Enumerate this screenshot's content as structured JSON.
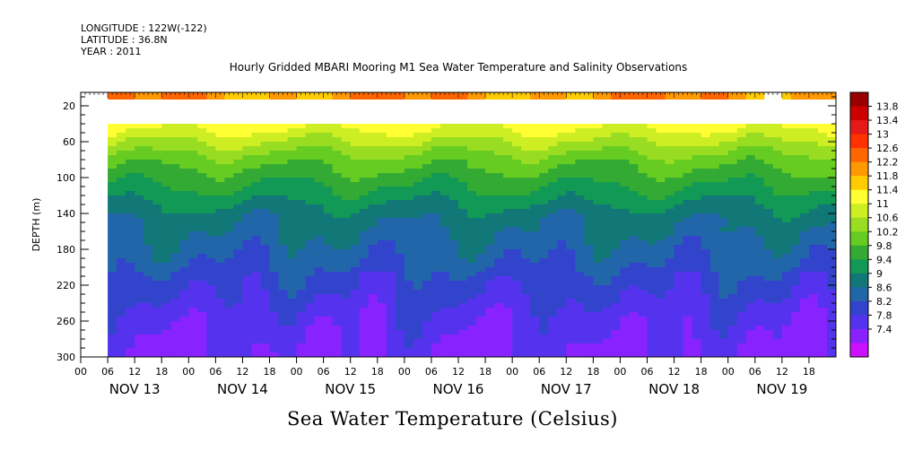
{
  "header": {
    "longitude": "LONGITUDE : 122W(-122)",
    "latitude": "LATITUDE : 36.8N",
    "year": "YEAR : 2011"
  },
  "chart_data": {
    "type": "heatmap",
    "title": "Hourly Gridded MBARI Mooring M1 Sea Water Temperature and Salinity Observations",
    "subtitle": "Sea Water Temperature (Celsius)",
    "ylabel": "DEPTH (m)",
    "xlabel": "",
    "y_ticks": [
      20,
      60,
      100,
      140,
      180,
      220,
      260,
      300
    ],
    "ylim": [
      300,
      5
    ],
    "x_hours_range": [
      0,
      168
    ],
    "x_hour_tick_labels": [
      "00",
      "06",
      "12",
      "18",
      "00",
      "06",
      "12",
      "18",
      "00",
      "06",
      "12",
      "18",
      "00",
      "06",
      "12",
      "18",
      "00",
      "06",
      "12",
      "18",
      "00",
      "06",
      "12",
      "18",
      "00",
      "06",
      "12",
      "18"
    ],
    "x_day_labels": [
      "NOV 13",
      "NOV 14",
      "NOV 15",
      "NOV 16",
      "NOV 17",
      "NOV 18",
      "NOV 19"
    ],
    "data_start_hour": 6,
    "data_end_hour": 168,
    "surface_band_depth": [
      5,
      13
    ],
    "gap_depth": [
      13,
      40
    ],
    "colorbar_levels": [
      "13.8",
      "13.4",
      "13",
      "12.6",
      "12.2",
      "11.8",
      "11.4",
      "11",
      "10.6",
      "10.2",
      "9.8",
      "9.4",
      "9",
      "8.6",
      "8.2",
      "7.8",
      "7.4"
    ],
    "colorbar_colors": [
      "#990000",
      "#cc0000",
      "#e61919",
      "#ff3300",
      "#ff6600",
      "#ff9900",
      "#ffcc00",
      "#ffff33",
      "#ccee22",
      "#99dd22",
      "#66cc22",
      "#33aa33",
      "#119955",
      "#117777",
      "#2266aa",
      "#3344cc",
      "#5533ee",
      "#8822ff",
      "#cc11ff"
    ],
    "profile_depths": [
      40,
      60,
      80,
      100,
      120,
      140,
      160,
      180,
      200,
      220,
      240,
      260,
      280,
      300
    ],
    "profile_temps": [
      11.6,
      11.0,
      10.4,
      10.0,
      9.6,
      9.2,
      9.0,
      8.8,
      8.6,
      8.4,
      8.2,
      8.0,
      7.9,
      7.8
    ],
    "surface_temp": 12.4
  }
}
